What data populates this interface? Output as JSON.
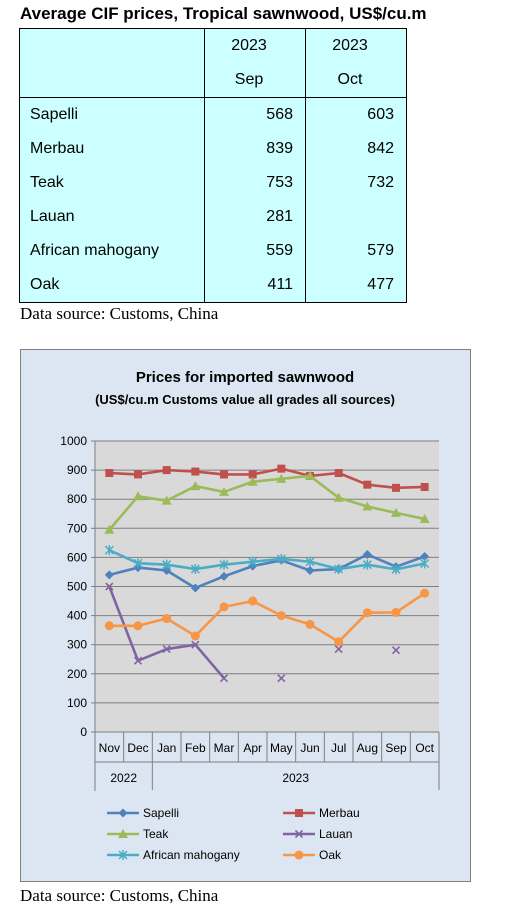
{
  "title": "Average CIF prices, Tropical sawnwood, US$/cu.m",
  "table": {
    "header_year": [
      "2023",
      "2023"
    ],
    "header_month": [
      "Sep",
      "Oct"
    ],
    "rows": [
      {
        "name": "Sapelli",
        "sep": "568",
        "oct": "603"
      },
      {
        "name": "Merbau",
        "sep": "839",
        "oct": "842"
      },
      {
        "name": "Teak",
        "sep": "753",
        "oct": "732"
      },
      {
        "name": "Lauan",
        "sep": "281",
        "oct": ""
      },
      {
        "name": "African mahogany",
        "sep": "559",
        "oct": "579"
      },
      {
        "name": "Oak",
        "sep": "411",
        "oct": "477"
      }
    ]
  },
  "source_top": "Data source: Customs, China",
  "source_bottom": "Data source: Customs, China",
  "chart_data": {
    "type": "line",
    "title": "Prices for imported sawnwood",
    "subtitle": "(US$/cu.m Customs value all grades all sources)",
    "xlabel": "",
    "ylabel": "",
    "ylim": [
      0,
      1000
    ],
    "yticks": [
      0,
      100,
      200,
      300,
      400,
      500,
      600,
      700,
      800,
      900,
      1000
    ],
    "categories": [
      "Nov",
      "Dec",
      "Jan",
      "Feb",
      "Mar",
      "Apr",
      "May",
      "Jun",
      "Jul",
      "Aug",
      "Sep",
      "Oct"
    ],
    "year_groups": [
      {
        "label": "2022",
        "start": 0,
        "end": 1
      },
      {
        "label": "2023",
        "start": 2,
        "end": 11
      }
    ],
    "grid": true,
    "legend_placement": "bottom",
    "series": [
      {
        "name": "Sapelli",
        "color": "#4f81bd",
        "marker": "diamond",
        "values": [
          540,
          565,
          555,
          495,
          535,
          570,
          590,
          555,
          560,
          610,
          568,
          603
        ]
      },
      {
        "name": "Merbau",
        "color": "#c0504d",
        "marker": "square",
        "values": [
          890,
          885,
          900,
          895,
          885,
          885,
          905,
          880,
          890,
          850,
          839,
          842
        ]
      },
      {
        "name": "Teak",
        "color": "#9bbb59",
        "marker": "triangle",
        "values": [
          695,
          810,
          795,
          845,
          825,
          860,
          870,
          880,
          805,
          775,
          753,
          732
        ]
      },
      {
        "name": "Lauan",
        "color": "#8064a2",
        "marker": "x",
        "values": [
          500,
          245,
          285,
          300,
          185,
          null,
          185,
          null,
          285,
          null,
          281,
          null
        ]
      },
      {
        "name": "African mahogany",
        "color": "#4bacc6",
        "marker": "star",
        "values": [
          625,
          580,
          575,
          560,
          575,
          585,
          595,
          585,
          560,
          575,
          559,
          579
        ]
      },
      {
        "name": "Oak",
        "color": "#f79646",
        "marker": "circle",
        "values": [
          365,
          365,
          390,
          330,
          430,
          450,
          400,
          370,
          310,
          410,
          411,
          477
        ]
      }
    ]
  }
}
